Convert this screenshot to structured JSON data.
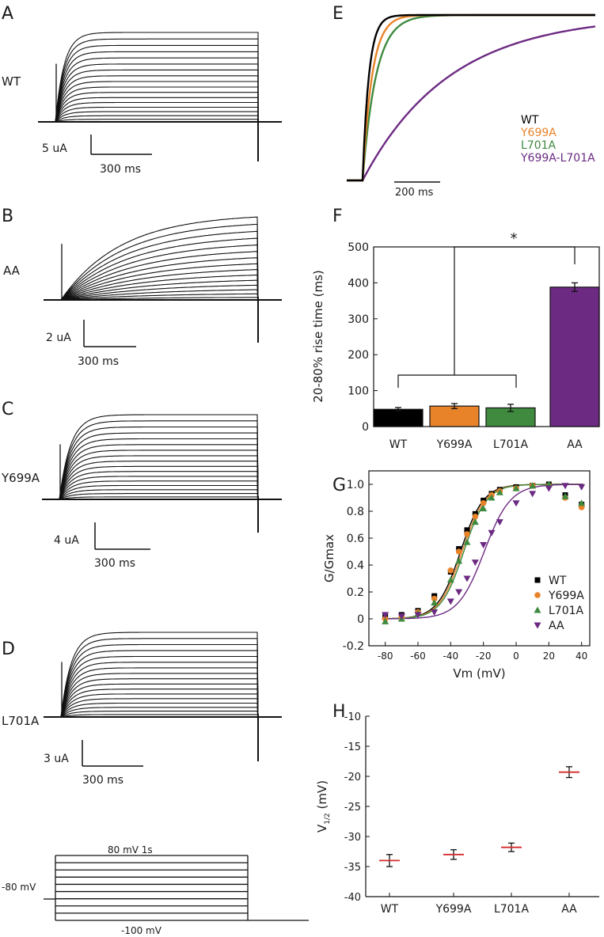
{
  "panels": {
    "A": {
      "letter": "A",
      "label": "WT",
      "scale_y": "5 uA",
      "scale_x": "300 ms"
    },
    "B": {
      "letter": "B",
      "label": "AA",
      "scale_y": "2 uA",
      "scale_x": "300 ms"
    },
    "C": {
      "letter": "C",
      "label": "Y699A",
      "scale_y": "4 uA",
      "scale_x": "300 ms"
    },
    "D": {
      "letter": "D",
      "label": "L701A",
      "scale_y": "3 uA",
      "scale_x": "300 ms"
    },
    "E": {
      "letter": "E",
      "scale_x": "200 ms"
    },
    "F": {
      "letter": "F"
    },
    "G": {
      "letter": "G"
    },
    "H": {
      "letter": "H"
    }
  },
  "protocol": {
    "top_label": "80 mV 1s",
    "hold_label": "-80 mV",
    "bottom_label": "-100 mV"
  },
  "colors": {
    "WT": "#000000",
    "Y699A": "#e8832a",
    "L701A": "#3f8a3f",
    "AA": "#6c2a82"
  },
  "chart_data": [
    {
      "panel": "E",
      "type": "line",
      "legend": [
        "WT",
        "Y699A",
        "L701A",
        "Y699A-L701A"
      ],
      "legend_placement": "right"
    },
    {
      "panel": "F",
      "type": "bar",
      "categories": [
        "WT",
        "Y699A",
        "L701A",
        "AA"
      ],
      "values": [
        48,
        57,
        52,
        388
      ],
      "errors": [
        5,
        7,
        10,
        12
      ],
      "ylabel": "20-80% rise time (ms)",
      "ylim": [
        0,
        500
      ],
      "yticks": [
        0,
        100,
        200,
        300,
        400,
        500
      ],
      "annotation": "*"
    },
    {
      "panel": "G",
      "type": "scatter",
      "xlabel": "Vm (mV)",
      "ylabel": "G/Gmax",
      "xlim": [
        -90,
        45
      ],
      "ylim": [
        -0.2,
        1.1
      ],
      "xticks": [
        -80,
        -60,
        -40,
        -20,
        0,
        20,
        40
      ],
      "yticks": [
        -0.2,
        0,
        0.2,
        0.4,
        0.6,
        0.8,
        1.0
      ],
      "legend_placement": "bottom-right",
      "x": [
        -80,
        -70,
        -60,
        -50,
        -40,
        -35,
        -30,
        -25,
        -20,
        -15,
        -10,
        0,
        10,
        20,
        30,
        40
      ],
      "series": [
        {
          "name": "WT",
          "marker": "square",
          "v_half": -34,
          "slope": 7,
          "y": [
            0.02,
            0.03,
            0.06,
            0.17,
            0.35,
            0.52,
            0.66,
            0.78,
            0.88,
            0.93,
            0.96,
            0.98,
            0.99,
            1.0,
            0.92,
            0.85
          ]
        },
        {
          "name": "Y699A",
          "marker": "circle",
          "v_half": -33,
          "slope": 7,
          "y": [
            0.0,
            0.01,
            0.05,
            0.15,
            0.36,
            0.5,
            0.63,
            0.76,
            0.86,
            0.92,
            0.95,
            0.97,
            0.99,
            0.99,
            0.9,
            0.83
          ]
        },
        {
          "name": "L701A",
          "marker": "triangle",
          "v_half": -32,
          "slope": 7,
          "y": [
            -0.02,
            0.0,
            0.04,
            0.12,
            0.29,
            0.43,
            0.57,
            0.72,
            0.82,
            0.9,
            0.94,
            0.97,
            0.99,
            1.0,
            0.91,
            0.86
          ]
        },
        {
          "name": "AA",
          "marker": "triangle-down",
          "v_half": -19.5,
          "slope": 8,
          "y": [
            0.03,
            0.02,
            0.03,
            0.05,
            0.13,
            0.2,
            0.3,
            0.42,
            0.55,
            0.64,
            0.72,
            0.86,
            0.93,
            0.97,
            0.99,
            0.98
          ]
        }
      ]
    },
    {
      "panel": "H",
      "type": "scatter",
      "categories": [
        "WT",
        "Y699A",
        "L701A",
        "AA"
      ],
      "values": [
        -34,
        -33,
        -31.8,
        -19.3
      ],
      "errors": [
        1.0,
        0.8,
        0.7,
        0.9
      ],
      "ylabel_main": "V",
      "ylabel_sub": "1/2",
      "ylabel_unit": "(mV)",
      "ylim": [
        -40,
        -10
      ],
      "yticks": [
        -40,
        -35,
        -30,
        -25,
        -20,
        -15,
        -10
      ]
    }
  ]
}
